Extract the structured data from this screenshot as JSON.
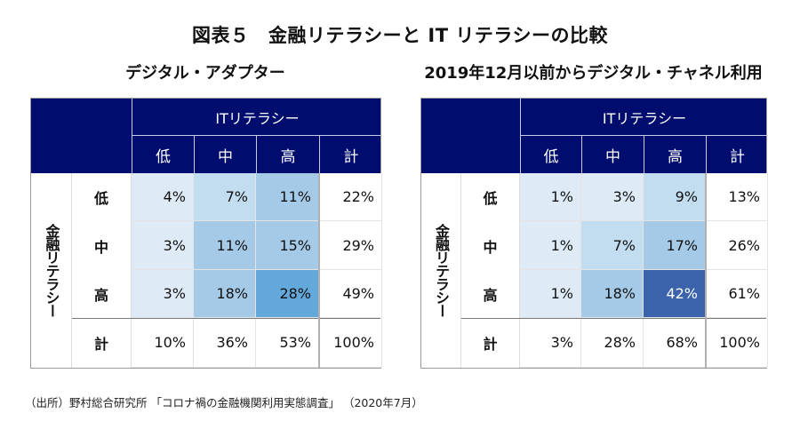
{
  "title": "図表５　金融リテラシーと IT リテラシーの比較",
  "source": "（出所）野村総合研究所 「コロナ禍の金融機関利用実態調査」 （2020年7月）",
  "colors": {
    "header_bg": "#000c6e",
    "scale": [
      "#deebf6",
      "#c2dcf0",
      "#a5cae8",
      "#62a8db",
      "#3a63ab"
    ]
  },
  "chart_data": [
    {
      "type": "table",
      "title": "デジタル・アダプター",
      "col_group_label": "ITリテラシー",
      "row_group_label": "金融リテラシー",
      "columns": [
        "低",
        "中",
        "高",
        "計"
      ],
      "rows": [
        "低",
        "中",
        "高",
        "計"
      ],
      "values": [
        [
          "4%",
          "7%",
          "11%",
          "22%"
        ],
        [
          "3%",
          "11%",
          "15%",
          "29%"
        ],
        [
          "3%",
          "18%",
          "28%",
          "49%"
        ],
        [
          "10%",
          "36%",
          "53%",
          "100%"
        ]
      ],
      "shade_levels": [
        [
          0,
          1,
          2
        ],
        [
          0,
          2,
          2
        ],
        [
          0,
          2,
          3
        ]
      ]
    },
    {
      "type": "table",
      "title": "2019年12月以前からデジタル・チャネル利用",
      "col_group_label": "ITリテラシー",
      "row_group_label": "金融リテラシー",
      "columns": [
        "低",
        "中",
        "高",
        "計"
      ],
      "rows": [
        "低",
        "中",
        "高",
        "計"
      ],
      "values": [
        [
          "1%",
          "3%",
          "9%",
          "13%"
        ],
        [
          "1%",
          "7%",
          "17%",
          "26%"
        ],
        [
          "1%",
          "18%",
          "42%",
          "61%"
        ],
        [
          "3%",
          "28%",
          "68%",
          "100%"
        ]
      ],
      "shade_levels": [
        [
          0,
          0,
          1
        ],
        [
          0,
          1,
          2
        ],
        [
          0,
          2,
          4
        ]
      ]
    }
  ]
}
